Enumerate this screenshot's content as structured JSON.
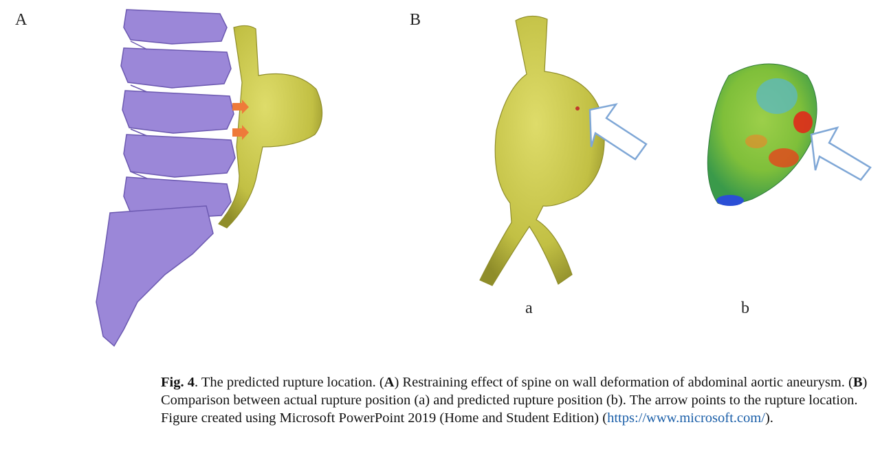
{
  "figure": {
    "panel_labels": {
      "A": "A",
      "B": "B",
      "a": "a",
      "b": "b"
    },
    "colors": {
      "spine": "#9b87d8",
      "aorta": "#c9c84a",
      "arrow_orange": "#ee7a3a",
      "arrow_outline": "#7fa7d6"
    },
    "caption": {
      "fig_label": "Fig. 4",
      "lead": ".  The predicted rupture location. (",
      "A_bold": "A",
      "text_A": ") Restraining effect of spine on wall deformation of abdominal aortic aneurysm. (",
      "B_bold": "B",
      "text_B": ") Comparison between actual rupture position (a) and predicted rupture position (b). The arrow points to the rupture location. Figure created using Microsoft PowerPoint 2019 (Home and Student Edition) (",
      "link": "https://www.microsoft.com/",
      "tail": ")."
    }
  }
}
